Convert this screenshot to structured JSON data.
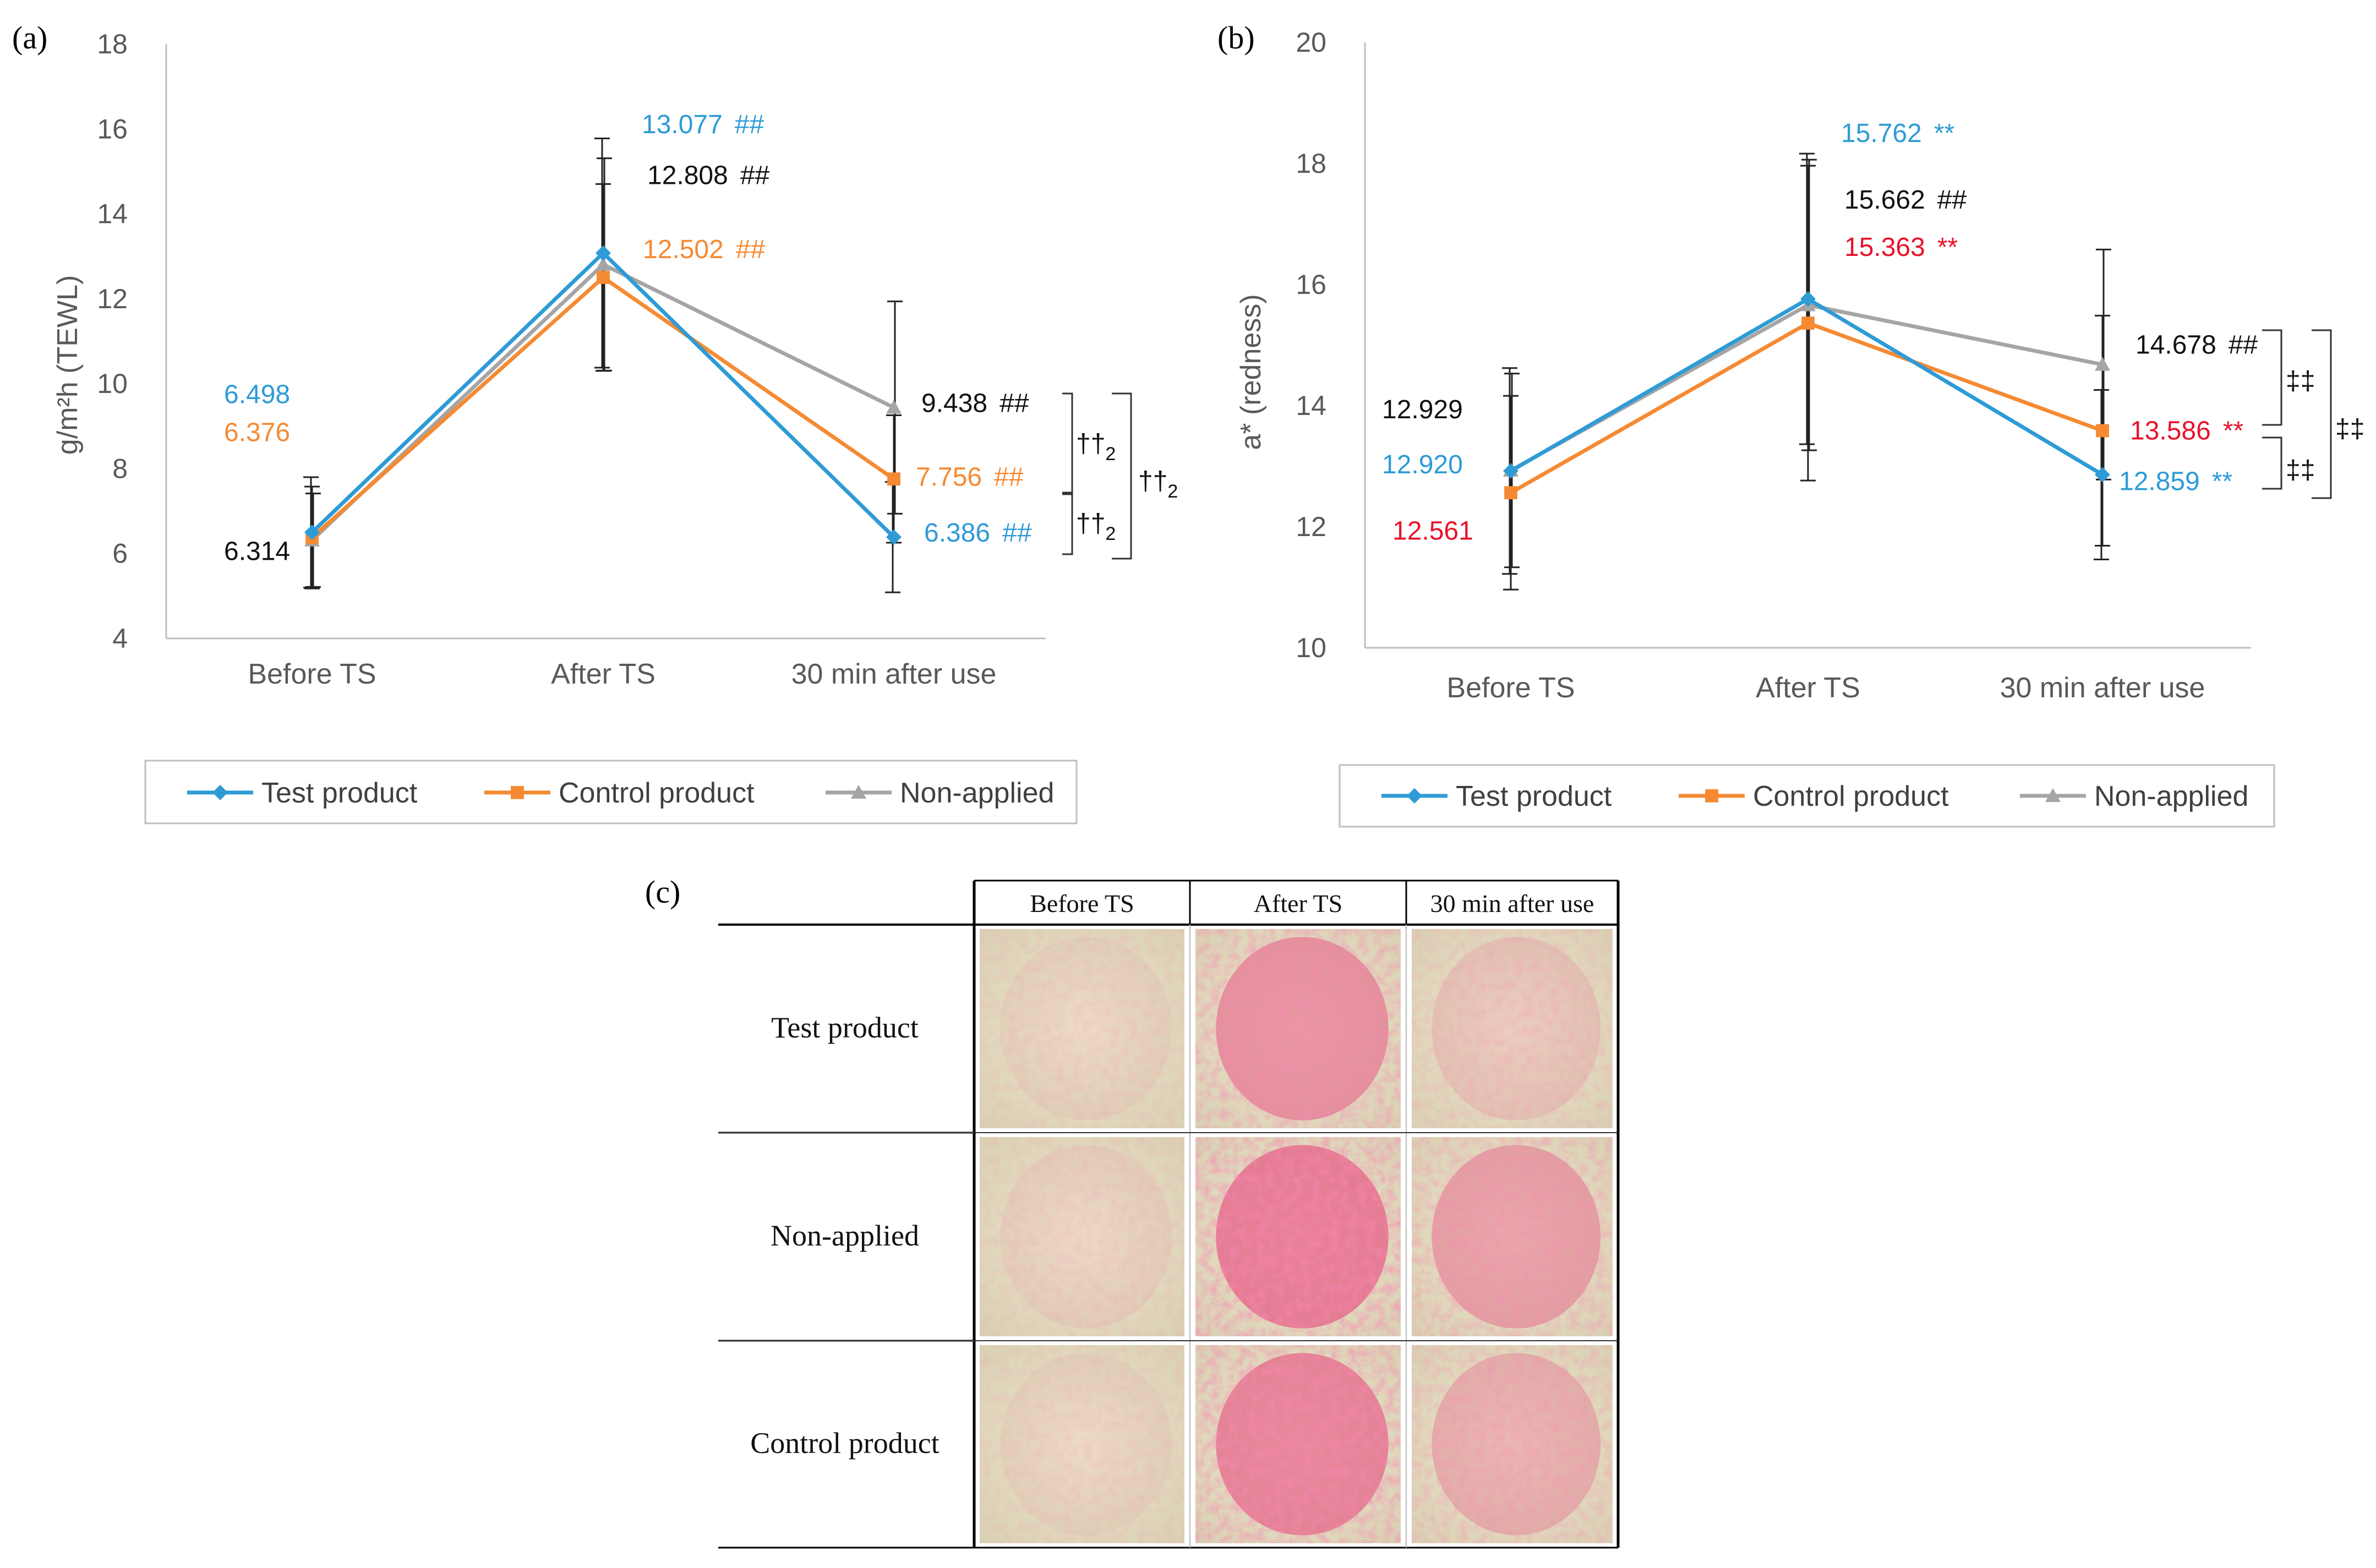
{
  "panel_labels": {
    "a": "(a)",
    "b": "(b)",
    "c": "(c)"
  },
  "colors": {
    "test": "#2e9bd6",
    "control": "#f58a33",
    "nonapplied": "#a5a5a5",
    "red": "#e8132a",
    "black": "#111111",
    "axis": "#7f7f7f",
    "tick": "#595959"
  },
  "legend": {
    "items": [
      {
        "key": "test",
        "label": "Test product",
        "marker": "diamond"
      },
      {
        "key": "control",
        "label": "Control product",
        "marker": "square"
      },
      {
        "key": "nonapplied",
        "label": "Non-applied",
        "marker": "triangle"
      }
    ]
  },
  "chart_data": [
    {
      "type": "line",
      "panel": "a",
      "title": "",
      "xlabel": "",
      "ylabel": "g/m²h (TEWL)",
      "ylim": [
        4,
        18
      ],
      "yticks": [
        "4",
        "6",
        "8",
        "10",
        "12",
        "14",
        "16",
        "18"
      ],
      "categories": [
        "Before TS",
        "After TS",
        "30 min after use"
      ],
      "series": [
        {
          "key": "test",
          "name": "Test product",
          "values": [
            6.498,
            13.077,
            6.386
          ],
          "err": [
            1.3,
            2.7,
            1.3
          ],
          "labels": [
            "6.498",
            "13.077",
            "6.386"
          ],
          "marks": [
            "",
            "##",
            "##"
          ]
        },
        {
          "key": "control",
          "name": "Control product",
          "values": [
            6.376,
            12.502,
            7.756
          ],
          "err": [
            1.2,
            2.2,
            1.5
          ],
          "labels": [
            "6.376",
            "12.502",
            "7.756"
          ],
          "marks": [
            "",
            "##",
            "##"
          ]
        },
        {
          "key": "nonapplied",
          "name": "Non-applied",
          "values": [
            6.314,
            12.808,
            9.438
          ],
          "err": [
            1.1,
            2.5,
            2.5
          ],
          "labels": [
            "6.314",
            "12.808",
            "9.438"
          ],
          "marks": [
            "",
            "##",
            "##"
          ]
        }
      ],
      "brackets": [
        {
          "symbol": "††",
          "sub": "2",
          "between": "Non-applied vs Control product"
        },
        {
          "symbol": "††",
          "sub": "2",
          "between": "Control product vs Test product"
        },
        {
          "symbol": "††",
          "sub": "2",
          "between": "Non-applied vs Test product"
        }
      ]
    },
    {
      "type": "line",
      "panel": "b",
      "title": "",
      "xlabel": "",
      "ylabel": "a* (redness)",
      "ylim": [
        10,
        20
      ],
      "yticks": [
        "10",
        "12",
        "14",
        "16",
        "18",
        "20"
      ],
      "categories": [
        "Before TS",
        "After TS",
        "30 min after use"
      ],
      "series": [
        {
          "key": "test",
          "name": "Test product",
          "values": [
            12.92,
            15.762,
            12.859
          ],
          "err": [
            1.7,
            2.4,
            1.4
          ],
          "labels": [
            "12.920",
            "15.762",
            "12.859"
          ],
          "marks": [
            "",
            "**",
            "**"
          ]
        },
        {
          "key": "control",
          "name": "Control product",
          "values": [
            12.561,
            15.363,
            13.586
          ],
          "err": [
            1.6,
            2.6,
            1.9
          ],
          "labels": [
            "12.561",
            "15.363",
            "13.586"
          ],
          "marks": [
            "",
            "**",
            "**"
          ]
        },
        {
          "key": "nonapplied",
          "name": "Non-applied",
          "values": [
            12.929,
            15.662,
            14.678
          ],
          "err": [
            1.6,
            2.4,
            1.9
          ],
          "labels": [
            "12.929",
            "15.662",
            "14.678"
          ],
          "marks": [
            "",
            "##",
            "##"
          ]
        }
      ],
      "brackets": [
        {
          "symbol": "‡‡",
          "sub": "",
          "between": "Non-applied vs Control product"
        },
        {
          "symbol": "‡‡",
          "sub": "",
          "between": "Control product vs Test product"
        },
        {
          "symbol": "‡‡",
          "sub": "",
          "between": "Non-applied vs Test product"
        }
      ]
    }
  ],
  "photo_table": {
    "columns": [
      "Before TS",
      "After TS",
      "30 min after use"
    ],
    "rows": [
      {
        "label": "Test product",
        "redness": [
          0.08,
          0.7,
          0.22
        ]
      },
      {
        "label": "Non-applied",
        "redness": [
          0.1,
          0.9,
          0.55
        ]
      },
      {
        "label": "Control product",
        "redness": [
          0.08,
          0.85,
          0.42
        ]
      }
    ]
  }
}
